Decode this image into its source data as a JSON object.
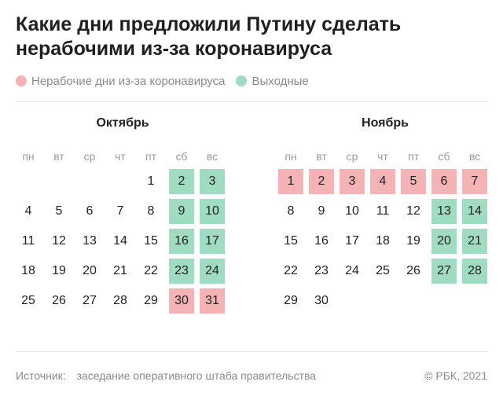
{
  "title": {
    "line1": "Какие дни предложили Путину сделать",
    "line2": "нерабочими из-за коронавируса"
  },
  "legend": {
    "items": [
      {
        "label": "Нерабочие дни из-за коронавируса",
        "color": "#f6b3b6"
      },
      {
        "label": "Выходные",
        "color": "#9fdcc1"
      }
    ]
  },
  "weekdays": [
    "пн",
    "вт",
    "ср",
    "чт",
    "пт",
    "сб",
    "вс"
  ],
  "months": [
    {
      "name": "Октябрь",
      "start_offset": 4,
      "days": 31,
      "weekend": [
        2,
        3,
        9,
        10,
        16,
        17,
        23,
        24
      ],
      "nonworking": [
        30,
        31
      ]
    },
    {
      "name": "Ноябрь",
      "start_offset": 0,
      "days": 30,
      "weekend": [
        13,
        14,
        20,
        21,
        27,
        28
      ],
      "nonworking": [
        1,
        2,
        3,
        4,
        5,
        6,
        7
      ]
    }
  ],
  "footer": {
    "source_label": "Источник:",
    "source_text": "заседание оперативного штаба правительства",
    "copyright": "© РБК, 2021"
  }
}
